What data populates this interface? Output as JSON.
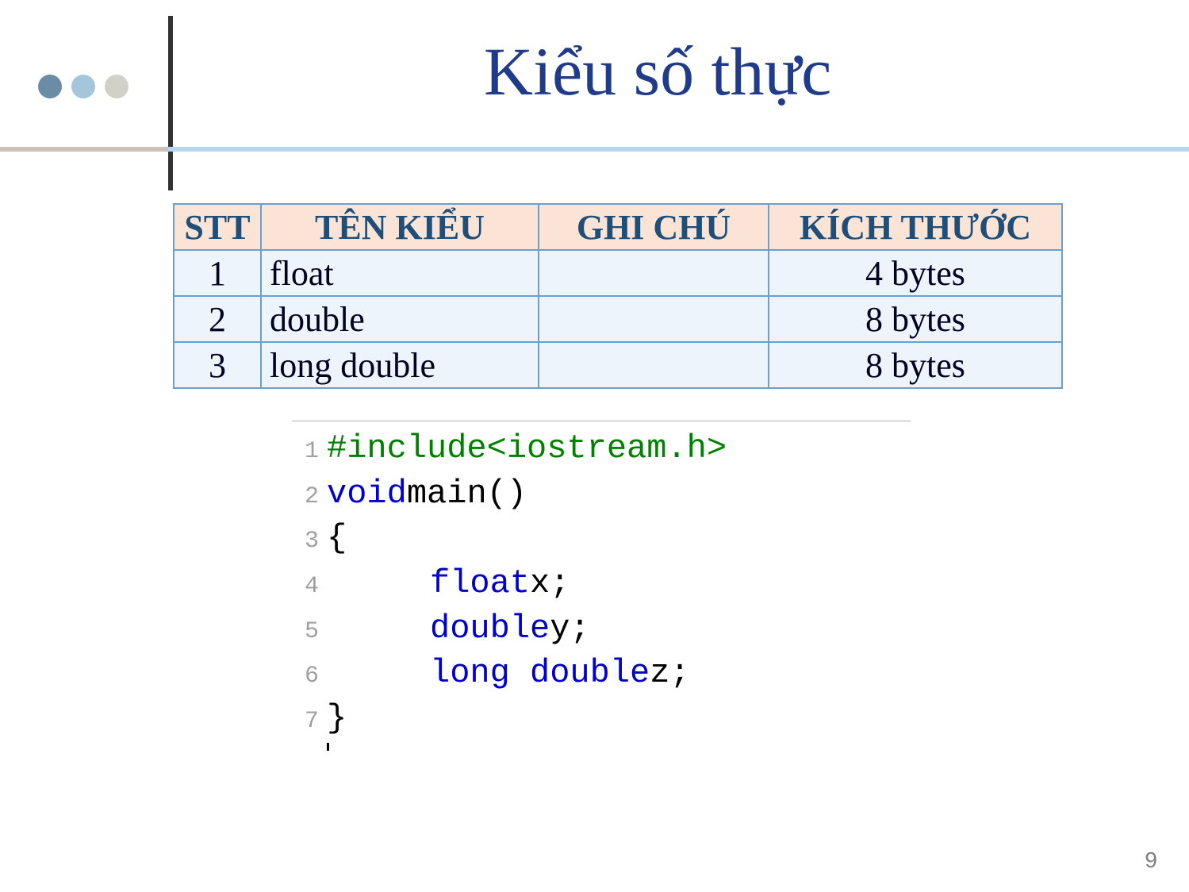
{
  "title": {
    "text": "Kiểu số thực",
    "color": "#1f3b8a"
  },
  "dots": {
    "colors": [
      "#6b8ca5",
      "#a5c6da",
      "#d1d1c7"
    ]
  },
  "table": {
    "headers": {
      "stt": "STT",
      "name": "TÊN KIỂU",
      "note": "GHI CHÚ",
      "size": "KÍCH THƯỚC"
    },
    "header_bg": "#fbe4d5",
    "header_color": "#1f4e79",
    "row_bg": "#edf4fb",
    "border_color": "#6d9fcd",
    "rows": [
      {
        "stt": "1",
        "name": "float",
        "note": "",
        "size": "4 bytes"
      },
      {
        "stt": "2",
        "name": "double",
        "note": "",
        "size": "8 bytes"
      },
      {
        "stt": "3",
        "name": "long double",
        "note": "",
        "size": "8 bytes"
      }
    ]
  },
  "code": {
    "font": "Courier New",
    "colors": {
      "preprocessor": "#008000",
      "keyword": "#0000cc",
      "identifier": "#000000",
      "lineno": "#a0a0a0"
    },
    "lines": {
      "l1_pp": "#include<iostream.h>",
      "l2_kw": "void",
      "l2_rest": " main()",
      "l3": "{",
      "l4_kw": "float",
      "l4_id": " x",
      "l4_pn": ";",
      "l5_kw": "double",
      "l5_id": " y",
      "l5_pn": ";",
      "l6_kw": "long double",
      "l6_id": " z",
      "l6_pn": ";",
      "l7": "}"
    },
    "line_numbers": [
      "1",
      "2",
      "3",
      "4",
      "5",
      "6",
      "7"
    ]
  },
  "page_number": "9"
}
